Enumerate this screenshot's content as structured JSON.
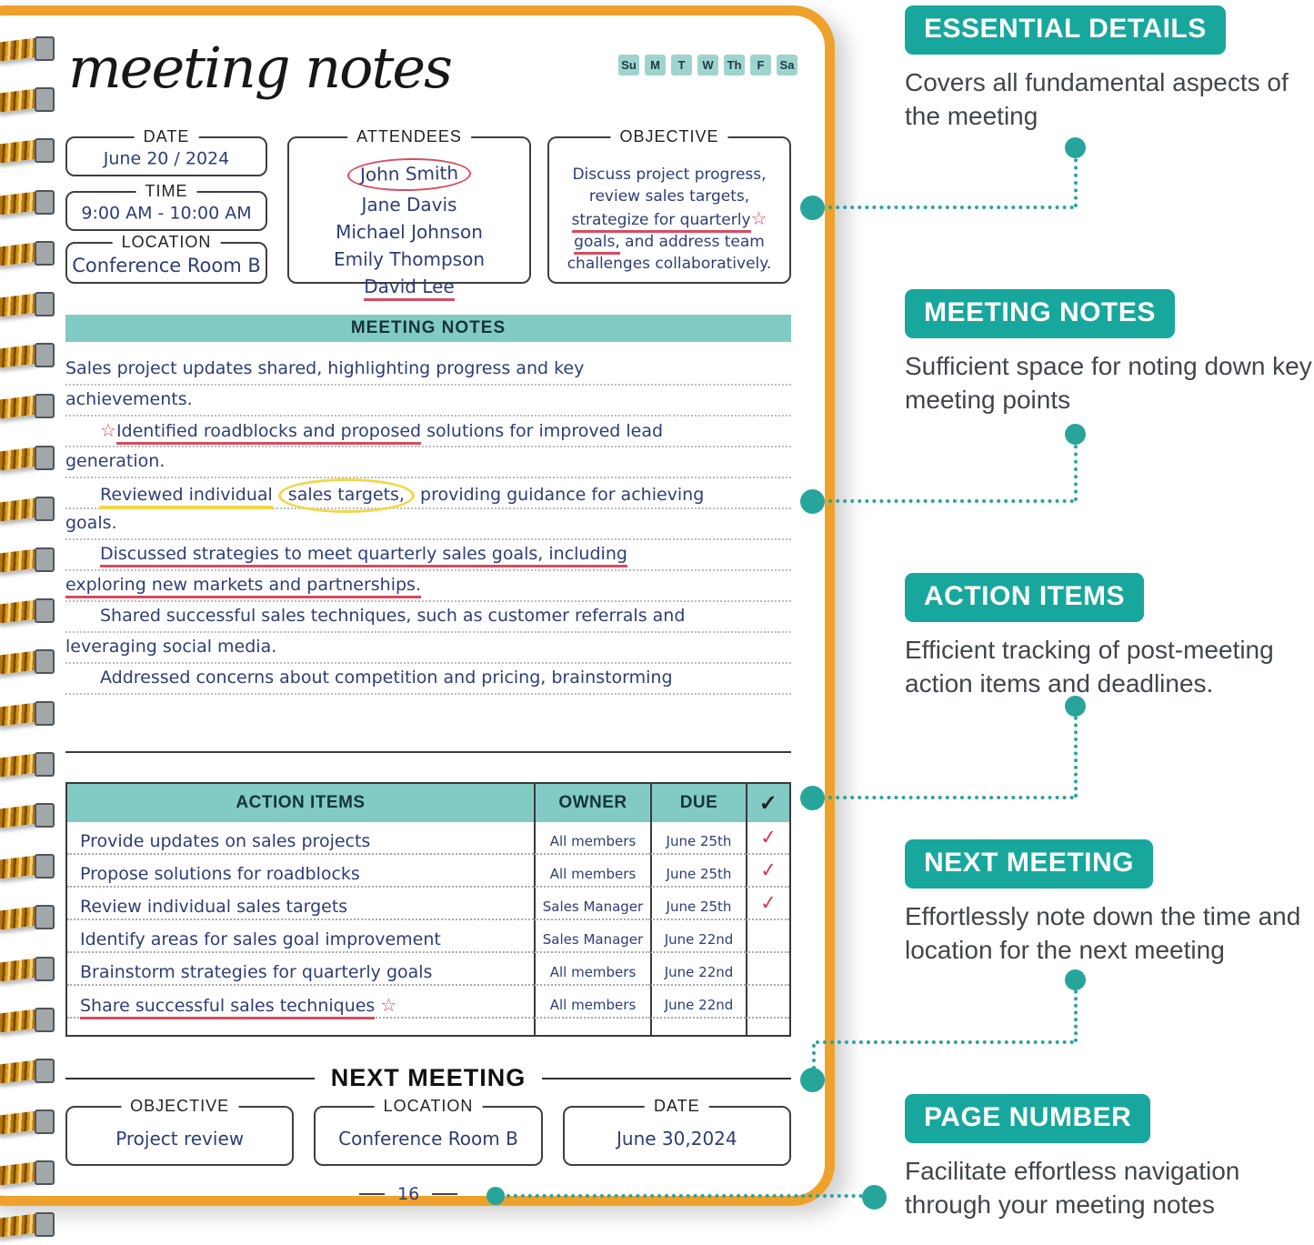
{
  "notebook": {
    "title": "meeting notes",
    "week_days": [
      "Su",
      "M",
      "T",
      "W",
      "Th",
      "F",
      "Sa"
    ],
    "fields": {
      "date": {
        "label": "DATE",
        "value": "June 20 / 2024"
      },
      "time": {
        "label": "TIME",
        "value": "9:00 AM - 10:00 AM"
      },
      "location": {
        "label": "LOCATION",
        "value": "Conference Room B"
      }
    },
    "attendees": {
      "label": "ATTENDEES",
      "names": [
        "John Smith",
        "Jane Davis",
        "Michael Johnson",
        "Emily Thompson",
        "David Lee"
      ]
    },
    "objective": {
      "label": "OBJECTIVE",
      "l1": "Discuss project progress,",
      "l2": "review sales targets,",
      "l3": "strategize for quarterly",
      "l4a": "goals,",
      "l4b": " and address team",
      "l5": "challenges collaboratively."
    },
    "notes": {
      "header": "MEETING NOTES",
      "n1": "Sales project updates shared, highlighting progress and key",
      "n2": "achievements.",
      "n3a": "Identified roadblocks and proposed",
      "n3b": " solutions for improved lead",
      "n4": "generation.",
      "n5a": "Reviewed individual",
      "n5b": "sales targets,",
      "n5c": " providing guidance for achieving",
      "n6": "goals.",
      "n7": "Discussed strategies to meet quarterly sales goals, including",
      "n8": "exploring new markets and partnerships.",
      "n9": "Shared successful sales techniques, such as customer referrals and",
      "n10": "leveraging social media.",
      "n11": "Addressed concerns about competition and pricing, brainstorming"
    },
    "action_table": {
      "headers": {
        "items": "ACTION ITEMS",
        "owner": "OWNER",
        "due": "DUE",
        "check": "✓"
      },
      "rows": [
        {
          "item": "Provide updates on sales projects",
          "owner": "All members",
          "due": "June 25th",
          "check": "✓"
        },
        {
          "item": "Propose solutions for roadblocks",
          "owner": "All members",
          "due": "June 25th",
          "check": "✓"
        },
        {
          "item": "Review individual sales targets",
          "owner": "Sales Manager",
          "due": "June 25th",
          "check": "✓"
        },
        {
          "item": "Identify areas for sales goal improvement",
          "owner": "Sales Manager",
          "due": "June 22nd",
          "check": ""
        },
        {
          "item": "Brainstorm strategies for quarterly goals",
          "owner": "All members",
          "due": "June 22nd",
          "check": ""
        },
        {
          "item": "Share successful sales techniques",
          "owner": "All members",
          "due": "June 22nd",
          "check": ""
        }
      ]
    },
    "next_meeting": {
      "title": "NEXT MEETING",
      "objective": {
        "label": "OBJECTIVE",
        "value": "Project review"
      },
      "location": {
        "label": "LOCATION",
        "value": "Conference Room B"
      },
      "date": {
        "label": "DATE",
        "value": "June 30,2024"
      }
    },
    "page_number": "16",
    "star_glyph": "☆"
  },
  "annotations": [
    {
      "title": "ESSENTIAL DETAILS",
      "desc": "Covers all fundamental aspects of the meeting"
    },
    {
      "title": "MEETING NOTES",
      "desc": "Sufficient space for noting down key meeting points"
    },
    {
      "title": "ACTION ITEMS",
      "desc": "Efficient tracking of post-meeting action items and deadlines."
    },
    {
      "title": "NEXT MEETING",
      "desc": "Effortlessly note down the time and location for the next meeting"
    },
    {
      "title": "PAGE NUMBER",
      "desc": "Facilitate effortless navigation through your meeting notes"
    }
  ],
  "colors": {
    "accent_teal": "#18a79d",
    "light_teal": "#82cbc4",
    "binding_orange": "#efa22b",
    "handwriting_navy": "#2e3d75",
    "marker_red": "#d84b60",
    "marker_yellow": "#f2d648"
  }
}
